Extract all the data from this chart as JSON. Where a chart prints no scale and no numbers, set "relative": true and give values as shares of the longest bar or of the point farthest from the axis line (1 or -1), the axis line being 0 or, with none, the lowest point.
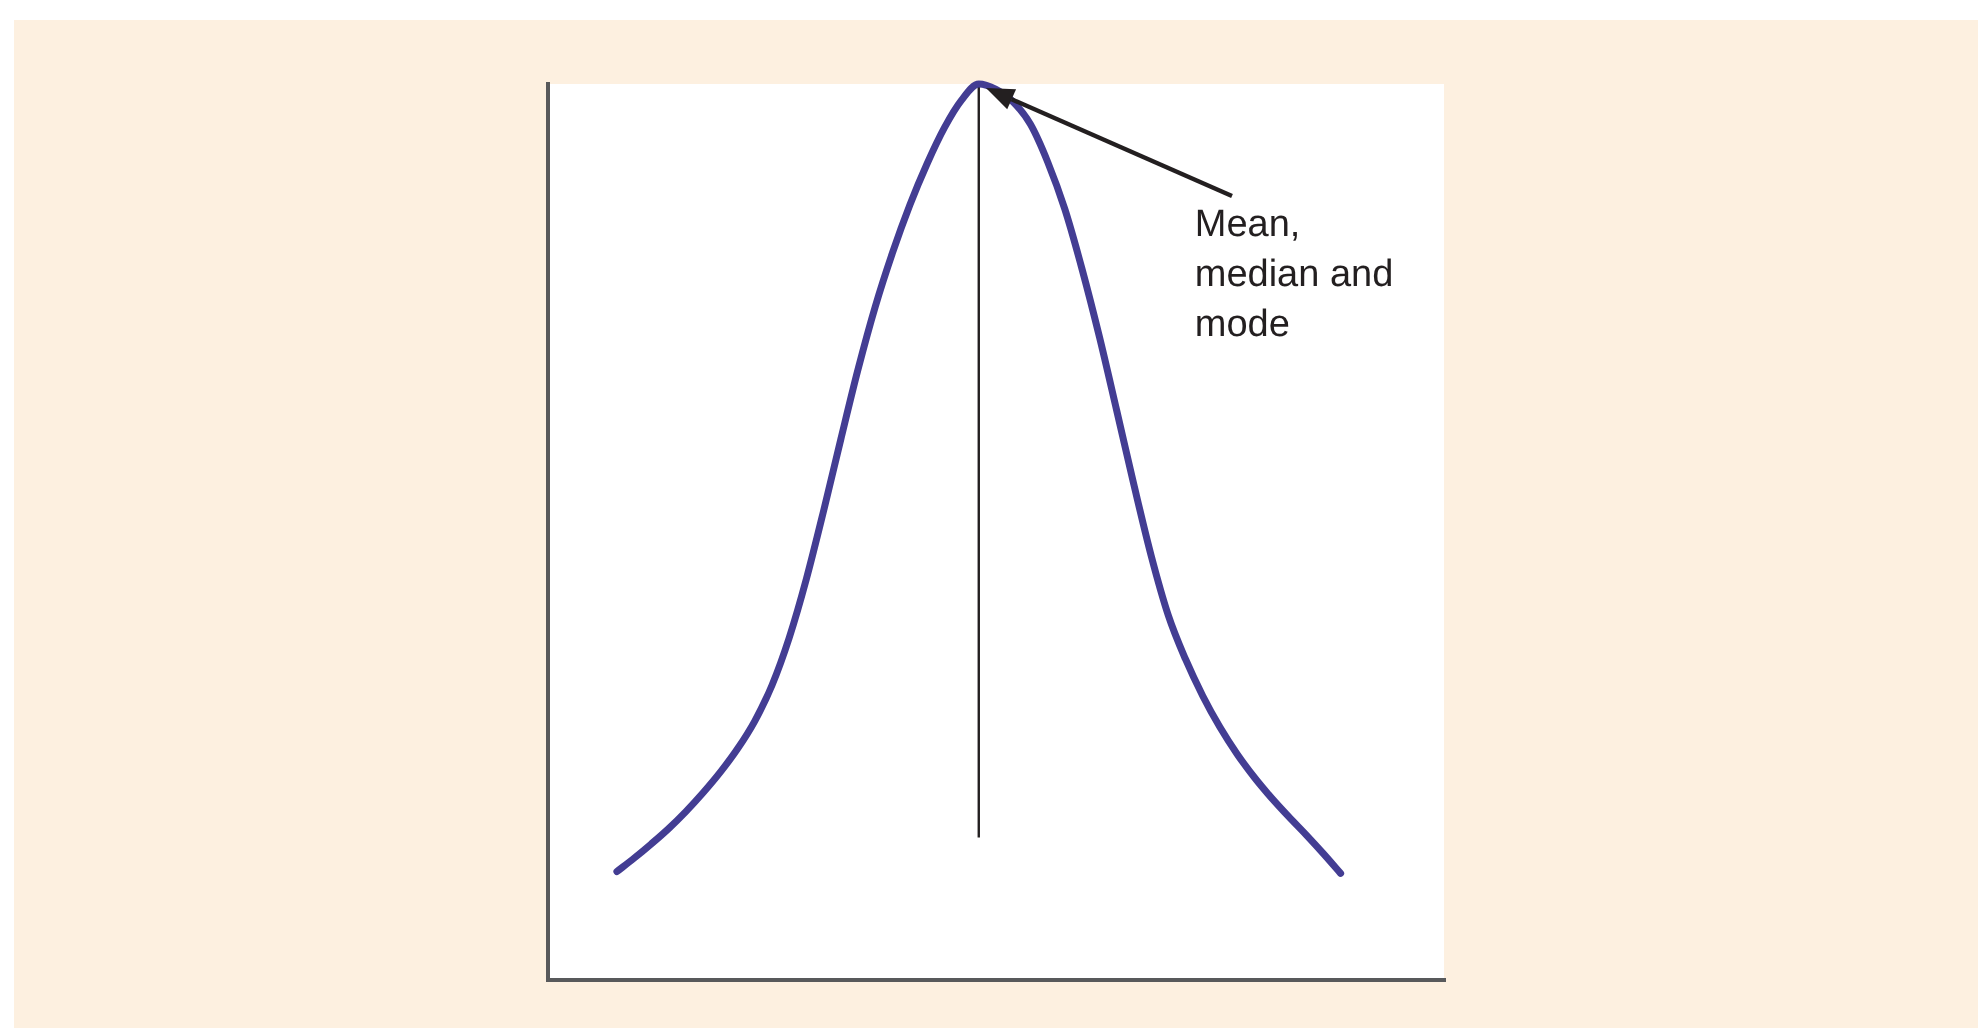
{
  "chart_data": {
    "type": "line",
    "relative": true,
    "categories": [
      null,
      null,
      null,
      null,
      null,
      null,
      null,
      null,
      null,
      null,
      null,
      null,
      null,
      null,
      null,
      null,
      null,
      null,
      null,
      null,
      null,
      null,
      null,
      null,
      null,
      null,
      null,
      null,
      null,
      null,
      null,
      null,
      null,
      null,
      null,
      null,
      null,
      null,
      null,
      null,
      null,
      null,
      null,
      null,
      null,
      null,
      null,
      null,
      null,
      null,
      null,
      null,
      null
    ],
    "values": [
      null,
      null,
      null,
      null,
      0.121,
      0.136,
      0.152,
      0.169,
      0.188,
      0.209,
      0.232,
      0.258,
      0.289,
      0.329,
      0.382,
      0.448,
      0.524,
      0.604,
      0.682,
      0.752,
      0.812,
      0.865,
      0.911,
      0.951,
      0.982,
      1,
      0.994,
      0.98,
      0.955,
      0.913,
      0.86,
      0.793,
      0.718,
      0.636,
      0.553,
      0.474,
      0.407,
      0.358,
      0.317,
      0.282,
      0.252,
      0.226,
      0.203,
      0.182,
      0.162,
      0.141,
      0.119,
      null,
      null,
      null,
      null,
      null,
      null
    ],
    "color": "#433d93",
    "line_style": "solid",
    "annotations": [
      "Mean, median and mode"
    ]
  }
}
